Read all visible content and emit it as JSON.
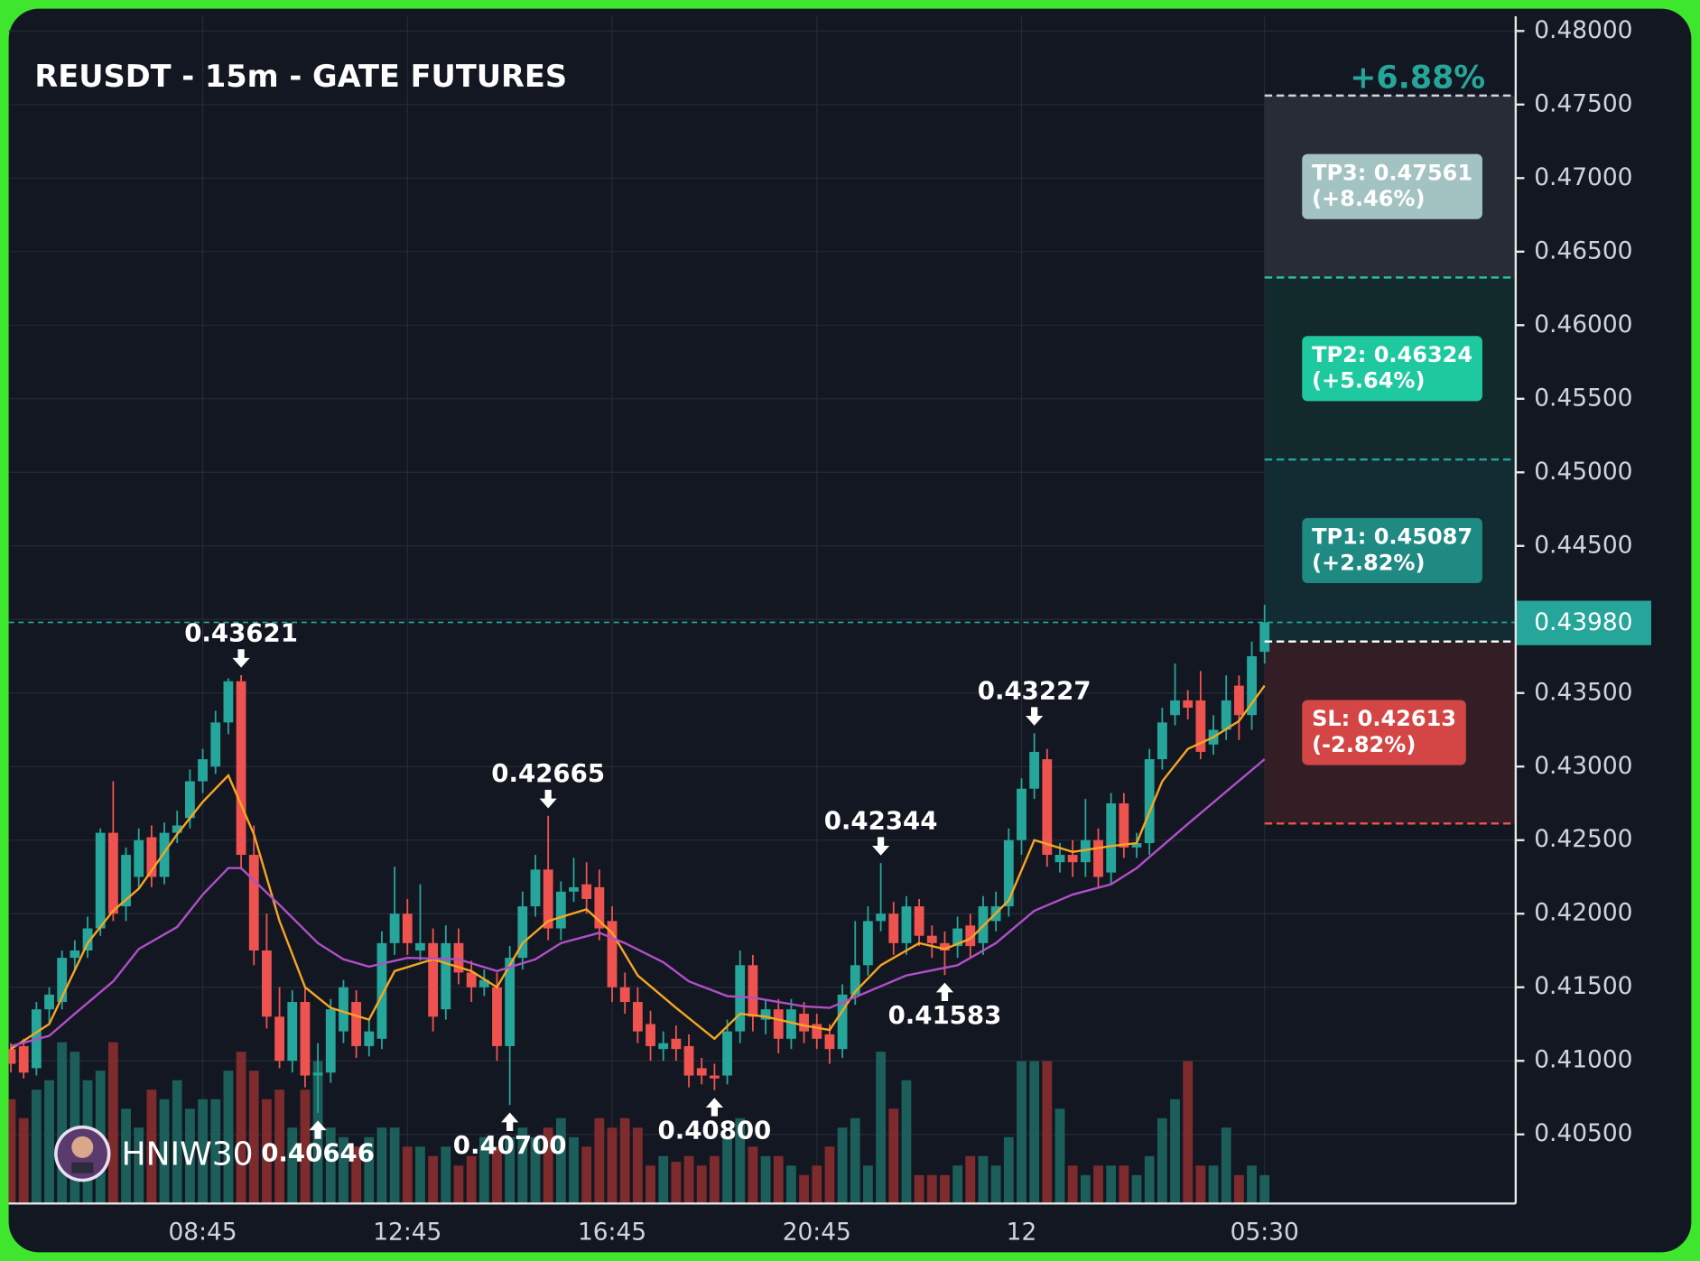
{
  "chart_data": {
    "type": "candlestick",
    "title": "REUSDT - 15m - GATE FUTURES",
    "watermark": "HNIW30",
    "categories": [
      null,
      null,
      null,
      null,
      null,
      null,
      null,
      null,
      null,
      null,
      null,
      null,
      null,
      null,
      null,
      "08:45",
      null,
      null,
      null,
      null,
      null,
      null,
      null,
      null,
      null,
      null,
      null,
      null,
      null,
      null,
      null,
      "12:45",
      null,
      null,
      null,
      null,
      null,
      null,
      null,
      null,
      null,
      null,
      null,
      null,
      null,
      null,
      null,
      "16:45",
      null,
      null,
      null,
      null,
      null,
      null,
      null,
      null,
      null,
      null,
      null,
      null,
      null,
      null,
      null,
      "20:45",
      null,
      null,
      null,
      null,
      null,
      null,
      null,
      null,
      null,
      null,
      null,
      null,
      null,
      null,
      null,
      "12",
      null,
      null,
      null,
      null,
      null,
      null,
      null,
      null,
      null,
      null,
      null,
      null,
      null,
      null,
      null,
      null,
      null,
      null,
      "05:30"
    ],
    "ohlc": [
      [
        0.4108,
        0.4112,
        0.4092,
        0.4098
      ],
      [
        0.411,
        0.4115,
        0.4088,
        0.4092
      ],
      [
        0.4095,
        0.414,
        0.409,
        0.4135
      ],
      [
        0.4135,
        0.415,
        0.4125,
        0.4145
      ],
      [
        0.414,
        0.4175,
        0.4135,
        0.417
      ],
      [
        0.417,
        0.4182,
        0.4162,
        0.4175
      ],
      [
        0.4175,
        0.4198,
        0.417,
        0.419
      ],
      [
        0.419,
        0.4258,
        0.4185,
        0.4255
      ],
      [
        0.4255,
        0.429,
        0.4195,
        0.42
      ],
      [
        0.4205,
        0.4245,
        0.4195,
        0.424
      ],
      [
        0.4225,
        0.4258,
        0.4218,
        0.425
      ],
      [
        0.4252,
        0.426,
        0.4218,
        0.4225
      ],
      [
        0.4225,
        0.4262,
        0.422,
        0.4255
      ],
      [
        0.4255,
        0.427,
        0.4248,
        0.426
      ],
      [
        0.4265,
        0.4298,
        0.4258,
        0.429
      ],
      [
        0.429,
        0.4312,
        0.4282,
        0.4305
      ],
      [
        0.43,
        0.4338,
        0.4295,
        0.433
      ],
      [
        0.433,
        0.436,
        0.4322,
        0.4358
      ],
      [
        0.4358,
        0.43621,
        0.423,
        0.424
      ],
      [
        0.424,
        0.426,
        0.4165,
        0.4175
      ],
      [
        0.4175,
        0.42,
        0.4122,
        0.413
      ],
      [
        0.413,
        0.415,
        0.4095,
        0.41
      ],
      [
        0.41,
        0.4148,
        0.4092,
        0.414
      ],
      [
        0.414,
        0.415,
        0.4082,
        0.409
      ],
      [
        0.409,
        0.4112,
        0.40646,
        0.4092
      ],
      [
        0.4092,
        0.4142,
        0.4085,
        0.4135
      ],
      [
        0.412,
        0.4155,
        0.4112,
        0.415
      ],
      [
        0.414,
        0.4148,
        0.4102,
        0.411
      ],
      [
        0.411,
        0.4128,
        0.4103,
        0.412
      ],
      [
        0.4115,
        0.4188,
        0.4108,
        0.418
      ],
      [
        0.418,
        0.4232,
        0.4172,
        0.42
      ],
      [
        0.42,
        0.421,
        0.4172,
        0.418
      ],
      [
        0.4175,
        0.422,
        0.4168,
        0.418
      ],
      [
        0.418,
        0.419,
        0.412,
        0.413
      ],
      [
        0.4135,
        0.4192,
        0.4128,
        0.418
      ],
      [
        0.418,
        0.419,
        0.4152,
        0.416
      ],
      [
        0.416,
        0.4168,
        0.414,
        0.415
      ],
      [
        0.415,
        0.4162,
        0.4144,
        0.4155
      ],
      [
        0.415,
        0.416,
        0.41,
        0.411
      ],
      [
        0.411,
        0.4178,
        0.407,
        0.417
      ],
      [
        0.417,
        0.4215,
        0.4162,
        0.4205
      ],
      [
        0.4205,
        0.424,
        0.4198,
        0.423
      ],
      [
        0.423,
        0.42665,
        0.4182,
        0.419
      ],
      [
        0.419,
        0.4222,
        0.4182,
        0.4215
      ],
      [
        0.4215,
        0.4238,
        0.4208,
        0.4218
      ],
      [
        0.422,
        0.4235,
        0.42,
        0.421
      ],
      [
        0.4218,
        0.423,
        0.4182,
        0.419
      ],
      [
        0.4195,
        0.4205,
        0.414,
        0.415
      ],
      [
        0.415,
        0.416,
        0.4132,
        0.414
      ],
      [
        0.414,
        0.415,
        0.4112,
        0.412
      ],
      [
        0.4125,
        0.4134,
        0.41,
        0.411
      ],
      [
        0.4108,
        0.412,
        0.41,
        0.4112
      ],
      [
        0.4115,
        0.4124,
        0.41,
        0.4108
      ],
      [
        0.411,
        0.4118,
        0.4082,
        0.409
      ],
      [
        0.4095,
        0.4102,
        0.4084,
        0.409
      ],
      [
        0.409,
        0.4098,
        0.408,
        0.4088
      ],
      [
        0.409,
        0.4128,
        0.4084,
        0.412
      ],
      [
        0.412,
        0.4175,
        0.4112,
        0.4165
      ],
      [
        0.4165,
        0.4172,
        0.412,
        0.413
      ],
      [
        0.4128,
        0.4142,
        0.4118,
        0.4135
      ],
      [
        0.4135,
        0.4142,
        0.4105,
        0.4115
      ],
      [
        0.4115,
        0.4142,
        0.4108,
        0.4135
      ],
      [
        0.4132,
        0.414,
        0.4112,
        0.412
      ],
      [
        0.4125,
        0.4132,
        0.4108,
        0.4115
      ],
      [
        0.4118,
        0.4125,
        0.4098,
        0.4108
      ],
      [
        0.4108,
        0.4152,
        0.4102,
        0.4145
      ],
      [
        0.4145,
        0.4195,
        0.4138,
        0.4165
      ],
      [
        0.4165,
        0.4205,
        0.4158,
        0.4195
      ],
      [
        0.4195,
        0.42344,
        0.4188,
        0.42
      ],
      [
        0.42,
        0.4208,
        0.4172,
        0.418
      ],
      [
        0.418,
        0.4212,
        0.4172,
        0.4205
      ],
      [
        0.4205,
        0.421,
        0.4178,
        0.4185
      ],
      [
        0.4185,
        0.4192,
        0.417,
        0.418
      ],
      [
        0.418,
        0.4188,
        0.41583,
        0.4175
      ],
      [
        0.4178,
        0.4198,
        0.417,
        0.419
      ],
      [
        0.4192,
        0.42,
        0.417,
        0.4178
      ],
      [
        0.418,
        0.4212,
        0.4172,
        0.4205
      ],
      [
        0.4195,
        0.4215,
        0.4188,
        0.4205
      ],
      [
        0.4205,
        0.4258,
        0.4198,
        0.425
      ],
      [
        0.425,
        0.4292,
        0.424,
        0.4285
      ],
      [
        0.4285,
        0.43227,
        0.4278,
        0.431
      ],
      [
        0.4305,
        0.4312,
        0.4232,
        0.424
      ],
      [
        0.4235,
        0.4248,
        0.4228,
        0.424
      ],
      [
        0.424,
        0.425,
        0.4225,
        0.4235
      ],
      [
        0.4235,
        0.4278,
        0.4225,
        0.425
      ],
      [
        0.425,
        0.4258,
        0.4218,
        0.4225
      ],
      [
        0.4228,
        0.4282,
        0.422,
        0.4275
      ],
      [
        0.4275,
        0.4282,
        0.4238,
        0.4245
      ],
      [
        0.4245,
        0.4255,
        0.4238,
        0.4248
      ],
      [
        0.4248,
        0.4312,
        0.424,
        0.4305
      ],
      [
        0.4305,
        0.434,
        0.4298,
        0.433
      ],
      [
        0.4335,
        0.437,
        0.4328,
        0.4345
      ],
      [
        0.4345,
        0.4352,
        0.4332,
        0.434
      ],
      [
        0.4345,
        0.4365,
        0.4305,
        0.431
      ],
      [
        0.4315,
        0.4335,
        0.4308,
        0.4325
      ],
      [
        0.4325,
        0.4362,
        0.4318,
        0.4345
      ],
      [
        0.4355,
        0.4362,
        0.4318,
        0.4335
      ],
      [
        0.4335,
        0.4385,
        0.4325,
        0.4375
      ],
      [
        0.4378,
        0.441,
        0.437,
        0.4398
      ]
    ],
    "volumes": [
      55,
      45,
      60,
      65,
      85,
      80,
      65,
      70,
      85,
      50,
      40,
      60,
      55,
      65,
      50,
      55,
      55,
      70,
      80,
      70,
      55,
      60,
      40,
      60,
      75,
      40,
      35,
      30,
      35,
      40,
      40,
      30,
      30,
      25,
      30,
      20,
      25,
      35,
      30,
      35,
      40,
      35,
      40,
      45,
      35,
      30,
      45,
      40,
      45,
      40,
      20,
      25,
      22,
      25,
      20,
      25,
      35,
      45,
      30,
      25,
      25,
      20,
      15,
      20,
      30,
      40,
      45,
      20,
      80,
      50,
      65,
      15,
      15,
      15,
      20,
      25,
      25,
      20,
      35,
      75,
      75,
      75,
      50,
      20,
      15,
      20,
      20,
      20,
      15,
      25,
      45,
      55,
      75,
      20,
      20,
      40,
      15,
      20,
      15
    ],
    "vlim": [
      0,
      100
    ],
    "up_color": "#26a69a",
    "down_color": "#ef5350",
    "up_volume_color": "#1d6660",
    "down_volume_color": "#8a2d2f",
    "ma": [
      {
        "color": "#f5a623",
        "x": [
          0,
          3,
          6,
          8,
          10,
          13,
          15,
          17,
          19,
          21,
          23,
          25,
          28,
          30,
          33,
          36,
          38,
          40,
          42,
          45,
          47,
          49,
          52,
          55,
          57,
          59,
          62,
          64,
          66,
          68,
          71,
          73,
          75,
          78,
          80,
          83,
          86,
          88,
          90,
          92,
          94,
          96,
          98
        ],
        "values": [
          0.4108,
          0.4125,
          0.418,
          0.4202,
          0.4217,
          0.4254,
          0.4276,
          0.4294,
          0.4254,
          0.4195,
          0.415,
          0.4136,
          0.4128,
          0.4161,
          0.4169,
          0.4161,
          0.415,
          0.418,
          0.4195,
          0.4203,
          0.4187,
          0.4158,
          0.4136,
          0.4115,
          0.4132,
          0.413,
          0.4124,
          0.4121,
          0.4147,
          0.4165,
          0.418,
          0.4176,
          0.4183,
          0.4209,
          0.425,
          0.4242,
          0.4246,
          0.4248,
          0.429,
          0.4312,
          0.432,
          0.4331,
          0.4355
        ]
      },
      {
        "color": "#b04fc8",
        "x": [
          0,
          3,
          5,
          8,
          10,
          13,
          15,
          17,
          18,
          21,
          24,
          26,
          28,
          31,
          35,
          38,
          41,
          43,
          46,
          48,
          51,
          53,
          56,
          58,
          62,
          64,
          67,
          70,
          74,
          77,
          80,
          83,
          86,
          88,
          92,
          95,
          98
        ],
        "values": [
          0.411,
          0.4117,
          0.4132,
          0.4154,
          0.4176,
          0.4191,
          0.4213,
          0.4231,
          0.4231,
          0.4206,
          0.418,
          0.4169,
          0.4164,
          0.417,
          0.4169,
          0.4161,
          0.4169,
          0.418,
          0.4187,
          0.418,
          0.4167,
          0.4154,
          0.4144,
          0.4143,
          0.4137,
          0.4136,
          0.4147,
          0.4158,
          0.4165,
          0.418,
          0.4202,
          0.4213,
          0.422,
          0.4231,
          0.4261,
          0.4283,
          0.4305
        ]
      }
    ],
    "annotations": [
      {
        "candle": 18,
        "price": 0.43621,
        "position": "above"
      },
      {
        "candle": 24,
        "price": 0.40646,
        "position": "below"
      },
      {
        "candle": 39,
        "price": 0.407,
        "label": "0.40700",
        "position": "below"
      },
      {
        "candle": 42,
        "price": 0.42665,
        "position": "above"
      },
      {
        "candle": 55,
        "price": 0.408,
        "label": "0.40800",
        "position": "below"
      },
      {
        "candle": 68,
        "price": 0.42344,
        "position": "above"
      },
      {
        "candle": 73,
        "price": 0.41583,
        "position": "below"
      },
      {
        "candle": 80,
        "price": 0.43227,
        "position": "above"
      }
    ],
    "last": {
      "value": 0.4398,
      "label": "0.43980"
    },
    "position": {
      "header": "+6.88%",
      "entry": 0.4385,
      "levels": [
        {
          "label": "TP3: 0.47561",
          "change": "(+8.46%)",
          "price": 0.47561,
          "color": "#a3c3c3",
          "line": "#d1d4dc",
          "zone": "#272c36"
        },
        {
          "label": "TP2: 0.46324",
          "change": "(+5.64%)",
          "price": 0.46324,
          "color": "#1ec99f",
          "line": "#26c6a6",
          "zone": "#132a2d"
        },
        {
          "label": "TP1: 0.45087",
          "change": "(+2.82%)",
          "price": 0.45087,
          "color": "#1e8a82",
          "line": "#26a69a",
          "zone": "#132b33"
        },
        {
          "label": "SL: 0.42613",
          "change": "(-2.82%)",
          "price": 0.42613,
          "color": "#d44646",
          "line": "#ef5350",
          "zone": "#331e25"
        }
      ]
    },
    "ylim": [
      0.4003,
      0.481
    ],
    "yticks": [
      {
        "value": 0.405,
        "label": "0.40500"
      },
      {
        "value": 0.41,
        "label": "0.41000"
      },
      {
        "value": 0.415,
        "label": "0.41500"
      },
      {
        "value": 0.42,
        "label": "0.42000"
      },
      {
        "value": 0.425,
        "label": "0.42500"
      },
      {
        "value": 0.43,
        "label": "0.43000"
      },
      {
        "value": 0.435,
        "label": "0.43500"
      },
      {
        "value": 0.44,
        "label": "0.44000"
      },
      {
        "value": 0.445,
        "label": "0.44500"
      },
      {
        "value": 0.45,
        "label": "0.45000"
      },
      {
        "value": 0.455,
        "label": "0.45500"
      },
      {
        "value": 0.46,
        "label": "0.46000"
      },
      {
        "value": 0.465,
        "label": "0.46500"
      },
      {
        "value": 0.47,
        "label": "0.47000"
      },
      {
        "value": 0.475,
        "label": "0.47500"
      },
      {
        "value": 0.48,
        "label": "0.48000"
      }
    ],
    "grid": true
  }
}
